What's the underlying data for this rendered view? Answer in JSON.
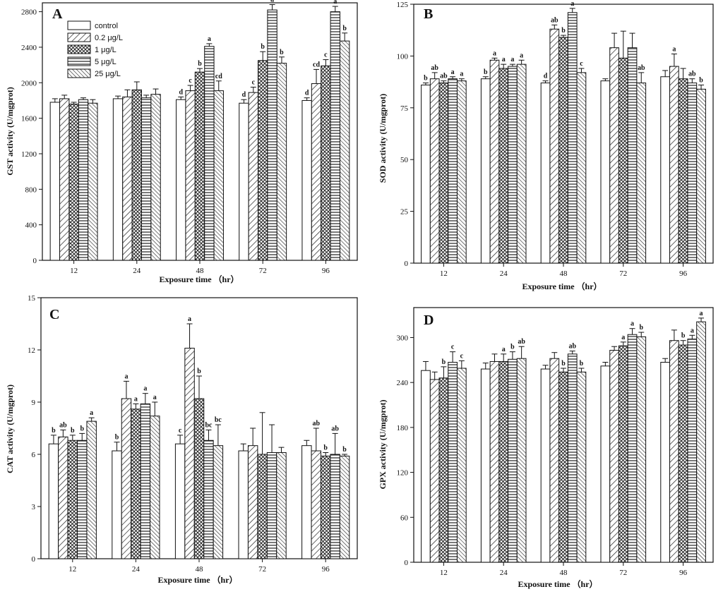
{
  "legend": {
    "entries": [
      "control",
      "0.2 μg/L",
      "1 μg/L",
      "5 μg/L",
      "25 μg/L"
    ]
  },
  "chart_data": [
    {
      "type": "bar",
      "panel": "A",
      "xlabel": "Exposure time （hr）",
      "ylabel": "GST activity (U/mgprot)",
      "categories": [
        "12",
        "24",
        "48",
        "72",
        "96"
      ],
      "ylim": [
        0,
        2900
      ],
      "yticks": [
        0,
        400,
        800,
        1200,
        1600,
        2000,
        2400,
        2800
      ],
      "series": [
        {
          "name": "control",
          "values": [
            1780,
            1820,
            1810,
            1770,
            1800
          ],
          "errors": [
            40,
            30,
            30,
            40,
            30
          ]
        },
        {
          "name": "0.2 μg/L",
          "values": [
            1820,
            1840,
            1910,
            1890,
            1990
          ],
          "errors": [
            40,
            80,
            60,
            60,
            160
          ]
        },
        {
          "name": "1 μg/L",
          "values": [
            1760,
            1920,
            2120,
            2250,
            2190
          ],
          "errors": [
            20,
            90,
            40,
            100,
            70
          ]
        },
        {
          "name": "5 μg/L",
          "values": [
            1810,
            1830,
            2410,
            2820,
            2800
          ],
          "errors": [
            20,
            30,
            30,
            60,
            60
          ]
        },
        {
          "name": "25 μg/L",
          "values": [
            1770,
            1870,
            1910,
            2220,
            2470
          ],
          "errors": [
            40,
            60,
            110,
            70,
            90
          ]
        }
      ],
      "sig_labels": [
        [
          "",
          "",
          "",
          "",
          ""
        ],
        [
          "",
          "",
          "",
          "",
          ""
        ],
        [
          "d",
          "c",
          "b",
          "a",
          "cd"
        ],
        [
          "d",
          "c",
          "b",
          "a",
          "b"
        ],
        [
          "d",
          "cd",
          "c",
          "a",
          "b"
        ]
      ]
    },
    {
      "type": "bar",
      "panel": "B",
      "xlabel": "Exposure time （hr）",
      "ylabel": "SOD activity (U/mgprot)",
      "categories": [
        "12",
        "24",
        "48",
        "72",
        "96"
      ],
      "ylim": [
        0,
        125
      ],
      "yticks": [
        0,
        25,
        50,
        75,
        100,
        125
      ],
      "series": [
        {
          "name": "control",
          "values": [
            86,
            89,
            87,
            88,
            90
          ],
          "errors": [
            1,
            1,
            1,
            1,
            3
          ]
        },
        {
          "name": "0.2 μg/L",
          "values": [
            89,
            98,
            113,
            104,
            95
          ],
          "errors": [
            3,
            1,
            2,
            7,
            6
          ]
        },
        {
          "name": "1 μg/L",
          "values": [
            87,
            94,
            109,
            99,
            89
          ],
          "errors": [
            1,
            2,
            1,
            13,
            5
          ]
        },
        {
          "name": "5 μg/L",
          "values": [
            89,
            95,
            121,
            104,
            87
          ],
          "errors": [
            1,
            1,
            2,
            7,
            2
          ]
        },
        {
          "name": "25 μg/L",
          "values": [
            88,
            96,
            92,
            87,
            84
          ],
          "errors": [
            1,
            2,
            2,
            5,
            2
          ]
        }
      ],
      "sig_labels": [
        [
          "b",
          "ab",
          "ab",
          "a",
          "a"
        ],
        [
          "b",
          "a",
          "a",
          "a",
          "a"
        ],
        [
          "d",
          "ab",
          "b",
          "a",
          "c"
        ],
        [
          "",
          "",
          "",
          "",
          "ab"
        ],
        [
          "",
          "a",
          "",
          "ab",
          "b"
        ]
      ]
    },
    {
      "type": "bar",
      "panel": "C",
      "xlabel": "Exposure time （hr）",
      "ylabel": "CAT activity (U/mgprot)",
      "categories": [
        "12",
        "24",
        "48",
        "72",
        "96"
      ],
      "ylim": [
        0,
        15
      ],
      "yticks": [
        0,
        3,
        6,
        9,
        12,
        15
      ],
      "series": [
        {
          "name": "control",
          "values": [
            6.6,
            6.2,
            6.6,
            6.2,
            6.5
          ],
          "errors": [
            0.5,
            0.5,
            0.5,
            0.4,
            0.3
          ]
        },
        {
          "name": "0.2 μg/L",
          "values": [
            7.0,
            9.2,
            12.1,
            6.5,
            6.2
          ],
          "errors": [
            0.4,
            1.0,
            1.4,
            1.0,
            1.3
          ]
        },
        {
          "name": "1 μg/L",
          "values": [
            6.8,
            8.6,
            9.2,
            6.0,
            5.9
          ],
          "errors": [
            0.3,
            0.3,
            1.3,
            2.4,
            0.2
          ]
        },
        {
          "name": "5 μg/L",
          "values": [
            6.8,
            8.9,
            6.8,
            6.1,
            6.0
          ],
          "errors": [
            0.4,
            0.6,
            0.6,
            1.6,
            1.2
          ]
        },
        {
          "name": "25 μg/L",
          "values": [
            7.9,
            8.2,
            6.5,
            6.1,
            5.9
          ],
          "errors": [
            0.2,
            0.8,
            1.2,
            0.3,
            0.1
          ]
        }
      ],
      "sig_labels": [
        [
          "b",
          "ab",
          "b",
          "b",
          "a"
        ],
        [
          "b",
          "a",
          "a",
          "a",
          "a"
        ],
        [
          "c",
          "a",
          "b",
          "bc",
          "bc"
        ],
        [
          "",
          "",
          "",
          "",
          ""
        ],
        [
          "",
          "ab",
          "b",
          "ab",
          "b"
        ]
      ]
    },
    {
      "type": "bar",
      "panel": "D",
      "xlabel": "Exposure time （hr）",
      "ylabel": "GPX activity (U/mgprot)",
      "categories": [
        "12",
        "24",
        "48",
        "72",
        "96"
      ],
      "ylim": [
        0,
        340
      ],
      "yticks": [
        0,
        60,
        120,
        180,
        240,
        300
      ],
      "series": [
        {
          "name": "control",
          "values": [
            256,
            258,
            258,
            262,
            267
          ],
          "errors": [
            12,
            8,
            5,
            5,
            5
          ]
        },
        {
          "name": "0.2 μg/L",
          "values": [
            244,
            268,
            272,
            283,
            296
          ],
          "errors": [
            10,
            10,
            8,
            5,
            14
          ]
        },
        {
          "name": "1 μg/L",
          "values": [
            246,
            268,
            254,
            289,
            290
          ],
          "errors": [
            15,
            10,
            5,
            5,
            6
          ]
        },
        {
          "name": "5 μg/L",
          "values": [
            267,
            271,
            278,
            304,
            298
          ],
          "errors": [
            14,
            10,
            4,
            8,
            5
          ]
        },
        {
          "name": "25 μg/L",
          "values": [
            259,
            272,
            254,
            301,
            321
          ],
          "errors": [
            10,
            16,
            5,
            6,
            5
          ]
        }
      ],
      "sig_labels": [
        [
          "",
          "",
          "b",
          "c",
          "c"
        ],
        [
          "",
          "",
          "a",
          "b",
          "ab"
        ],
        [
          "",
          "",
          "b",
          "ab",
          "b"
        ],
        [
          "",
          "",
          "a",
          "a",
          "b"
        ],
        [
          "",
          "",
          "b",
          "a",
          "a"
        ]
      ]
    }
  ]
}
